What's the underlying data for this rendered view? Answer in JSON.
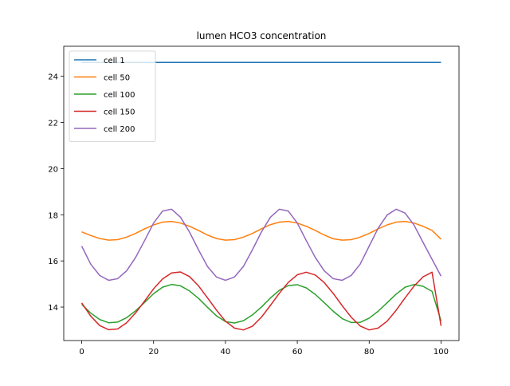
{
  "chart_data": {
    "type": "line",
    "title": "lumen HCO3 concentration",
    "xlabel": "",
    "ylabel": "",
    "xlim": [
      -5,
      105
    ],
    "ylim": [
      12.55,
      25.3
    ],
    "xticks": [
      0,
      20,
      40,
      60,
      80,
      100
    ],
    "yticks": [
      14,
      16,
      18,
      20,
      22,
      24
    ],
    "grid": false,
    "legend_position": "top-left",
    "x": [
      0,
      2.5,
      5,
      7.5,
      10,
      12.5,
      15,
      17.5,
      20,
      22.5,
      25,
      27.5,
      30,
      32.5,
      35,
      37.5,
      40,
      42.5,
      45,
      47.5,
      50,
      52.5,
      55,
      57.5,
      60,
      62.5,
      65,
      67.5,
      70,
      72.5,
      75,
      77.5,
      80,
      82.5,
      85,
      87.5,
      90,
      92.5,
      95,
      97.5,
      100
    ],
    "series": [
      {
        "name": "cell 1",
        "color": "#1f77b4",
        "values": [
          24.6,
          24.6,
          24.6,
          24.6,
          24.6,
          24.6,
          24.6,
          24.6,
          24.6,
          24.6,
          24.6,
          24.6,
          24.6,
          24.6,
          24.6,
          24.6,
          24.6,
          24.6,
          24.6,
          24.6,
          24.6,
          24.6,
          24.6,
          24.6,
          24.6,
          24.6,
          24.6,
          24.6,
          24.6,
          24.6,
          24.6,
          24.6,
          24.6,
          24.6,
          24.6,
          24.6,
          24.6,
          24.6,
          24.6,
          24.6,
          24.6
        ]
      },
      {
        "name": "cell 50",
        "color": "#ff7f0e",
        "values": [
          17.26,
          17.1,
          16.97,
          16.9,
          16.92,
          17.03,
          17.19,
          17.39,
          17.56,
          17.68,
          17.71,
          17.64,
          17.5,
          17.32,
          17.12,
          16.97,
          16.9,
          16.92,
          17.03,
          17.19,
          17.39,
          17.57,
          17.68,
          17.71,
          17.64,
          17.5,
          17.32,
          17.12,
          16.96,
          16.9,
          16.92,
          17.03,
          17.19,
          17.39,
          17.56,
          17.68,
          17.71,
          17.64,
          17.5,
          17.32,
          16.94
        ]
      },
      {
        "name": "cell 100",
        "color": "#2ca02c",
        "values": [
          14.12,
          13.74,
          13.46,
          13.32,
          13.35,
          13.54,
          13.84,
          14.2,
          14.58,
          14.86,
          14.98,
          14.92,
          14.7,
          14.38,
          13.99,
          13.62,
          13.37,
          13.31,
          13.41,
          13.66,
          14.0,
          14.39,
          14.73,
          14.93,
          14.97,
          14.83,
          14.55,
          14.19,
          13.82,
          13.5,
          13.33,
          13.34,
          13.52,
          13.82,
          14.19,
          14.56,
          14.86,
          14.98,
          14.9,
          14.68,
          13.4
        ]
      },
      {
        "name": "cell 150",
        "color": "#d62728",
        "values": [
          14.18,
          13.61,
          13.2,
          13.02,
          13.05,
          13.32,
          13.75,
          14.26,
          14.79,
          15.22,
          15.48,
          15.52,
          15.32,
          14.92,
          14.4,
          13.87,
          13.39,
          13.09,
          13.01,
          13.17,
          13.56,
          14.07,
          14.6,
          15.07,
          15.4,
          15.51,
          15.39,
          15.06,
          14.59,
          14.06,
          13.56,
          13.18,
          13.01,
          13.09,
          13.39,
          13.86,
          14.4,
          14.91,
          15.31,
          15.51,
          13.19
        ]
      },
      {
        "name": "cell 200",
        "color": "#9467bd",
        "values": [
          16.64,
          15.86,
          15.37,
          15.16,
          15.23,
          15.57,
          16.15,
          16.88,
          17.64,
          18.16,
          18.24,
          17.89,
          17.25,
          16.48,
          15.76,
          15.3,
          15.16,
          15.3,
          15.76,
          16.48,
          17.25,
          17.89,
          18.24,
          18.16,
          17.64,
          16.88,
          16.15,
          15.57,
          15.23,
          15.16,
          15.37,
          15.86,
          16.64,
          17.42,
          17.99,
          18.24,
          18.07,
          17.55,
          16.8,
          16.07,
          15.34
        ]
      }
    ]
  }
}
